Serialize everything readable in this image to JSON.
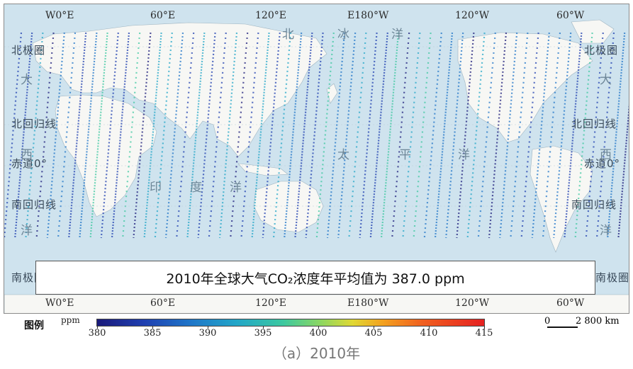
{
  "map": {
    "top_longitudes": [
      "W0°E",
      "60°E",
      "120°E",
      "E180°W",
      "120°W",
      "60°W"
    ],
    "bottom_longitudes": [
      "W0°E",
      "60°E",
      "120°E",
      "E180°W",
      "120°W",
      "60°W"
    ],
    "left_lat_labels": [
      "北极圈",
      "北回归线",
      "赤道0°",
      "南回归线",
      "南极圈"
    ],
    "right_lat_labels": [
      "北极圈",
      "北回归线",
      "赤道0°",
      "南回归线",
      "南极圈"
    ],
    "ocean_labels": {
      "arctic": [
        "北",
        "冰",
        "洋"
      ],
      "pacific": [
        "太",
        "平",
        "洋"
      ],
      "indian": [
        "印",
        "度",
        "洋"
      ],
      "atlantic_left": [
        "大",
        "西",
        "洋"
      ],
      "atlantic_right": [
        "大",
        "西",
        "洋"
      ]
    },
    "title": "2010年全球大气CO₂浓度年平均值为 387.0 ppm",
    "colors": {
      "ocean": "#cfe3ee",
      "land": "#f7f7f4",
      "border": "#8a8a8a"
    }
  },
  "legend": {
    "label": "图例",
    "unit": "ppm",
    "ticks": [
      "380",
      "385",
      "390",
      "395",
      "400",
      "405",
      "410",
      "415"
    ],
    "colors": [
      "#1a1a7a",
      "#1f3fb0",
      "#1f75c8",
      "#22a6c8",
      "#3cc8a0",
      "#8ed760",
      "#e0d834",
      "#f3a020",
      "#f06020",
      "#e52121"
    ]
  },
  "scale": {
    "zero": "0",
    "distance": "2 800 km"
  },
  "caption": "（a）2010年"
}
